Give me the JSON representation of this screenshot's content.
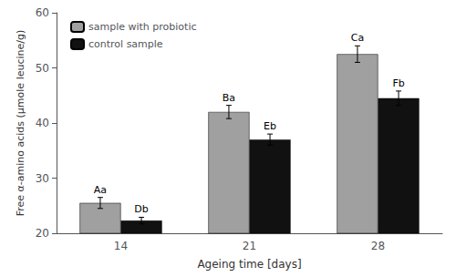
{
  "chart_data": {
    "type": "bar",
    "categories": [
      "14",
      "21",
      "28"
    ],
    "series": [
      {
        "name": "sample with probiotic",
        "color": "#a0a0a0",
        "values": [
          25.5,
          42.0,
          52.5
        ],
        "errors": [
          1.0,
          1.2,
          1.5
        ],
        "labels": [
          "Aa",
          "Ba",
          "Ca"
        ]
      },
      {
        "name": "control sample",
        "color": "#111111",
        "values": [
          22.3,
          37.0,
          44.5
        ],
        "errors": [
          0.6,
          1.0,
          1.3
        ],
        "labels": [
          "Db",
          "Eb",
          "Fb"
        ]
      }
    ],
    "xlabel": "Ageing time [days]",
    "ylabel": "Free α-amino acids (μmole leucine/g)",
    "ylim": [
      20,
      60
    ],
    "yticks": [
      20,
      30,
      40,
      50,
      60
    ],
    "legend": "upper left",
    "grid": false
  }
}
